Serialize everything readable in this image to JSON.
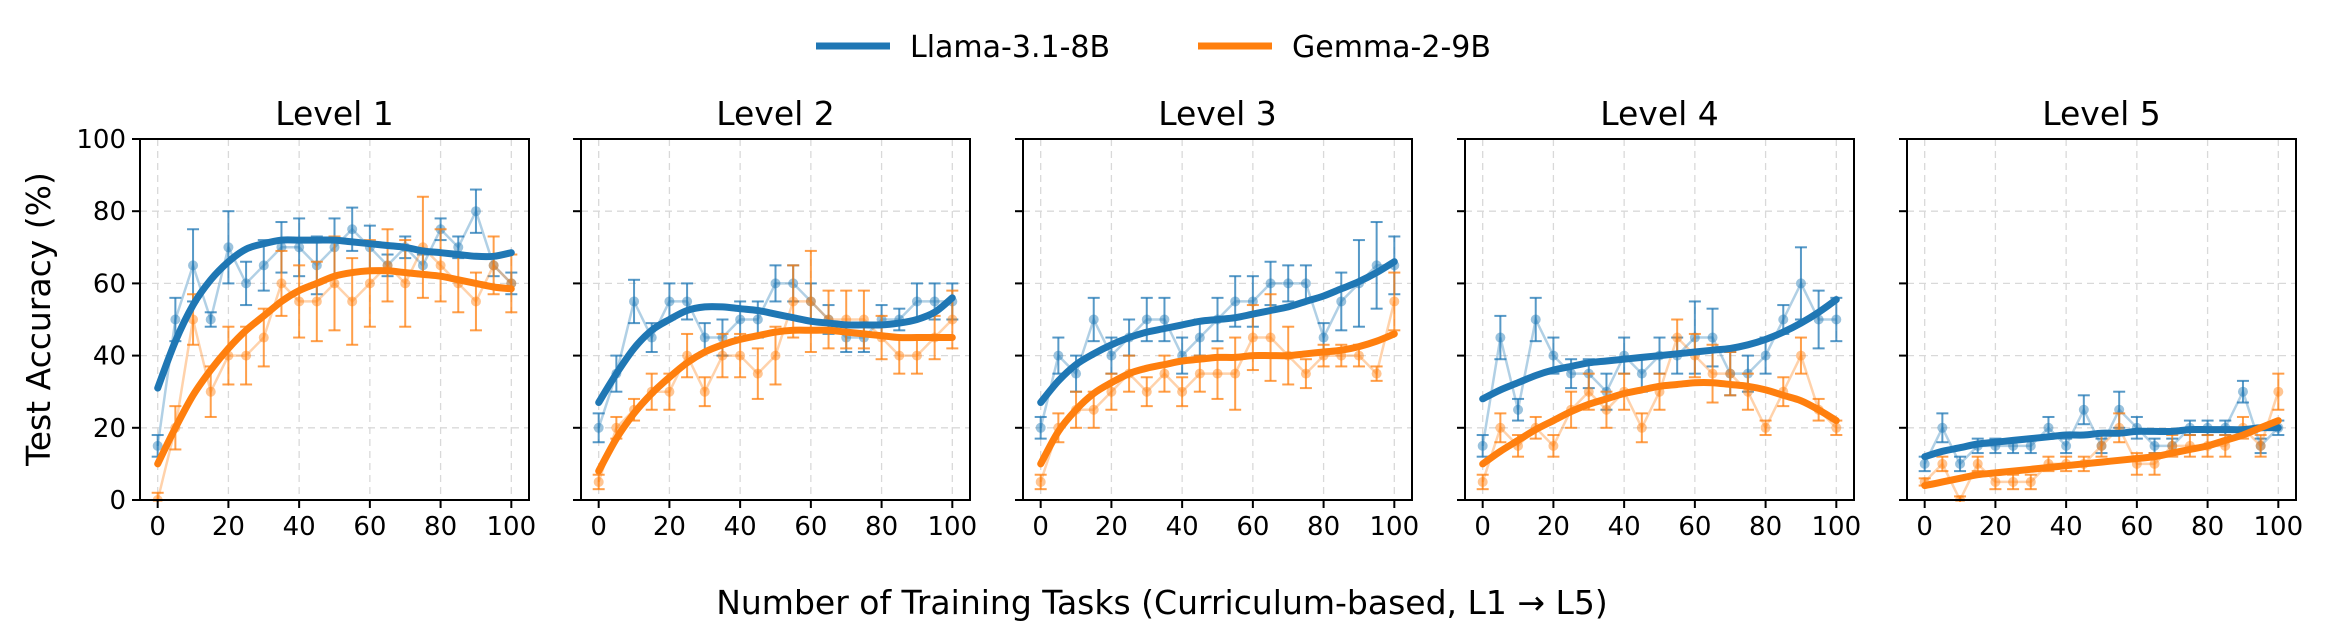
{
  "chart_data": {
    "type": "line",
    "layout": "1x5 panels",
    "xlabel": "Number of Training Tasks (Curriculum-based, L1 → L5)",
    "ylabel": "Test Accuracy (%)",
    "xlim": [
      -5,
      105
    ],
    "ylim": [
      0,
      100
    ],
    "xticks": [
      0,
      20,
      40,
      60,
      80,
      100
    ],
    "yticks": [
      0,
      20,
      40,
      60,
      80,
      100
    ],
    "grid": true,
    "legend_position": "top-center",
    "series_styles": [
      {
        "name": "Llama-3.1-8B",
        "color": "#1f77b4"
      },
      {
        "name": "Gemma-2-9B",
        "color": "#ff7f0e"
      }
    ],
    "x": [
      0,
      5,
      10,
      15,
      20,
      25,
      30,
      35,
      40,
      45,
      50,
      55,
      60,
      65,
      70,
      75,
      80,
      85,
      90,
      95,
      100
    ],
    "panels": [
      {
        "title": "Level 1",
        "series": [
          {
            "name": "Llama-3.1-8B",
            "values": [
              15,
              50,
              65,
              50,
              70,
              60,
              65,
              70,
              70,
              65,
              70,
              75,
              70,
              65,
              70,
              65,
              75,
              70,
              80,
              65,
              60
            ],
            "err": [
              3,
              6,
              10,
              2,
              10,
              6,
              7,
              7,
              8,
              8,
              8,
              6,
              6,
              3,
              3,
              3,
              3,
              3,
              6,
              3,
              3
            ],
            "fit": [
              31,
              44,
              54,
              61,
              66,
              69.5,
              71,
              72,
              72,
              72,
              72,
              71.5,
              71,
              70.5,
              70,
              69,
              68.5,
              68,
              67.5,
              67.5,
              68.5
            ]
          },
          {
            "name": "Gemma-2-9B",
            "values": [
              0,
              20,
              50,
              30,
              40,
              40,
              45,
              60,
              55,
              55,
              60,
              55,
              60,
              65,
              60,
              70,
              65,
              60,
              55,
              65,
              60
            ],
            "err": [
              2,
              6,
              7,
              7,
              8,
              8,
              8,
              9,
              10,
              11,
              13,
              12,
              12,
              10,
              12,
              14,
              10,
              8,
              8,
              8,
              8
            ],
            "fit": [
              10,
              20,
              29,
              36,
              42,
              47,
              51,
              55,
              58,
              60,
              62,
              63,
              63.5,
              63.5,
              63,
              62.5,
              62,
              61,
              60,
              59,
              58.5
            ]
          }
        ]
      },
      {
        "title": "Level 2",
        "series": [
          {
            "name": "Llama-3.1-8B",
            "values": [
              20,
              35,
              55,
              45,
              55,
              55,
              45,
              45,
              50,
              50,
              60,
              60,
              55,
              50,
              45,
              45,
              50,
              50,
              55,
              55,
              55
            ],
            "err": [
              4,
              5,
              6,
              4,
              5,
              5,
              4,
              5,
              5,
              5,
              5,
              5,
              5,
              4,
              4,
              4,
              4,
              3,
              5,
              5,
              5
            ],
            "fit": [
              27,
              35,
              42,
              47,
              50,
              52.5,
              53.5,
              53.5,
              53,
              52.5,
              51.5,
              50.5,
              49.5,
              49,
              48.5,
              48.5,
              48.5,
              49,
              50,
              52,
              56
            ]
          },
          {
            "name": "Gemma-2-9B",
            "values": [
              5,
              20,
              25,
              30,
              30,
              40,
              30,
              40,
              40,
              35,
              40,
              55,
              55,
              50,
              50,
              50,
              45,
              40,
              40,
              45,
              50
            ],
            "err": [
              2,
              3,
              3,
              5,
              5,
              6,
              4,
              6,
              6,
              7,
              8,
              10,
              14,
              8,
              8,
              8,
              6,
              5,
              5,
              6,
              8
            ],
            "fit": [
              8,
              17,
              24,
              29.5,
              34,
              38,
              41,
              43,
              44.5,
              45.5,
              46.5,
              47,
              47,
              47,
              46.5,
              46,
              45.5,
              45,
              45,
              45,
              45
            ]
          }
        ]
      },
      {
        "title": "Level 3",
        "series": [
          {
            "name": "Llama-3.1-8B",
            "values": [
              20,
              40,
              35,
              50,
              40,
              45,
              50,
              50,
              40,
              45,
              50,
              55,
              55,
              60,
              60,
              60,
              45,
              55,
              60,
              65,
              65
            ],
            "err": [
              3,
              5,
              5,
              6,
              5,
              5,
              6,
              6,
              5,
              5,
              6,
              7,
              7,
              6,
              5,
              5,
              4,
              8,
              12,
              12,
              8
            ],
            "fit": [
              27,
              33,
              37.5,
              40.5,
              43,
              45,
              46.5,
              47.5,
              48.5,
              49.5,
              50,
              50.5,
              51.5,
              52.5,
              53.5,
              55,
              56.5,
              58.5,
              60.5,
              63,
              66
            ]
          },
          {
            "name": "Gemma-2-9B",
            "values": [
              5,
              20,
              25,
              25,
              30,
              35,
              30,
              35,
              30,
              35,
              35,
              35,
              45,
              45,
              40,
              35,
              40,
              40,
              40,
              35,
              55
            ],
            "err": [
              2,
              4,
              5,
              5,
              5,
              5,
              4,
              5,
              4,
              5,
              7,
              10,
              9,
              12,
              8,
              4,
              3,
              3,
              3,
              2,
              8
            ],
            "fit": [
              10,
              19,
              25,
              29.5,
              32.5,
              35,
              36.5,
              37.5,
              38.5,
              39,
              39.5,
              39.5,
              40,
              40,
              40,
              40.5,
              41,
              41.5,
              42.5,
              44,
              46
            ]
          }
        ]
      },
      {
        "title": "Level 4",
        "series": [
          {
            "name": "Llama-3.1-8B",
            "values": [
              15,
              45,
              25,
              50,
              40,
              35,
              35,
              30,
              40,
              35,
              40,
              40,
              45,
              45,
              35,
              35,
              40,
              50,
              60,
              50,
              50
            ],
            "err": [
              3,
              6,
              3,
              6,
              5,
              4,
              4,
              5,
              5,
              5,
              5,
              5,
              10,
              8,
              6,
              5,
              5,
              4,
              10,
              8,
              6
            ],
            "fit": [
              28,
              30.5,
              32.5,
              34.5,
              36,
              37,
              38,
              38.5,
              39,
              39.5,
              40,
              40.5,
              41,
              41.5,
              42,
              43,
              44.5,
              46.5,
              49,
              52,
              55.5
            ]
          },
          {
            "name": "Gemma-2-9B",
            "values": [
              5,
              20,
              15,
              20,
              15,
              25,
              30,
              25,
              30,
              20,
              30,
              45,
              40,
              35,
              35,
              30,
              20,
              30,
              40,
              25,
              20
            ],
            "err": [
              2,
              4,
              3,
              3,
              3,
              5,
              5,
              5,
              5,
              4,
              5,
              5,
              6,
              8,
              6,
              5,
              2,
              4,
              5,
              3,
              2
            ],
            "fit": [
              10,
              13.5,
              16.5,
              19.5,
              22,
              24.5,
              26.5,
              28,
              29.5,
              30.5,
              31.5,
              32,
              32.5,
              32.5,
              32,
              31.5,
              30.5,
              29,
              27.5,
              25,
              22
            ]
          }
        ]
      },
      {
        "title": "Level 5",
        "series": [
          {
            "name": "Llama-3.1-8B",
            "values": [
              10,
              20,
              10,
              15,
              15,
              15,
              15,
              20,
              15,
              25,
              15,
              25,
              20,
              15,
              15,
              20,
              20,
              20,
              30,
              15,
              20
            ],
            "err": [
              2,
              4,
              2,
              2,
              2,
              2,
              2,
              3,
              2,
              4,
              2,
              5,
              3,
              2,
              2,
              2,
              2,
              2,
              3,
              2,
              2
            ],
            "fit": [
              12,
              13.5,
              14.5,
              15.5,
              16,
              16.5,
              17,
              17.5,
              18,
              18,
              18.5,
              18.5,
              19,
              19,
              19,
              19.5,
              19.5,
              19.5,
              19.5,
              20,
              20
            ]
          },
          {
            "name": "Gemma-2-9B",
            "values": [
              5,
              10,
              0,
              10,
              5,
              5,
              5,
              10,
              10,
              10,
              15,
              20,
              10,
              10,
              15,
              15,
              15,
              15,
              20,
              15,
              30
            ],
            "err": [
              1,
              2,
              1,
              2,
              2,
              2,
              2,
              2,
              2,
              2,
              3,
              4,
              3,
              3,
              3,
              3,
              3,
              3,
              3,
              3,
              5
            ],
            "fit": [
              4,
              5,
              6,
              7,
              7.5,
              8,
              8.5,
              9,
              9.5,
              10,
              10.5,
              11,
              11.5,
              12,
              13,
              14,
              15,
              16.5,
              18,
              20,
              22
            ]
          }
        ]
      }
    ]
  }
}
